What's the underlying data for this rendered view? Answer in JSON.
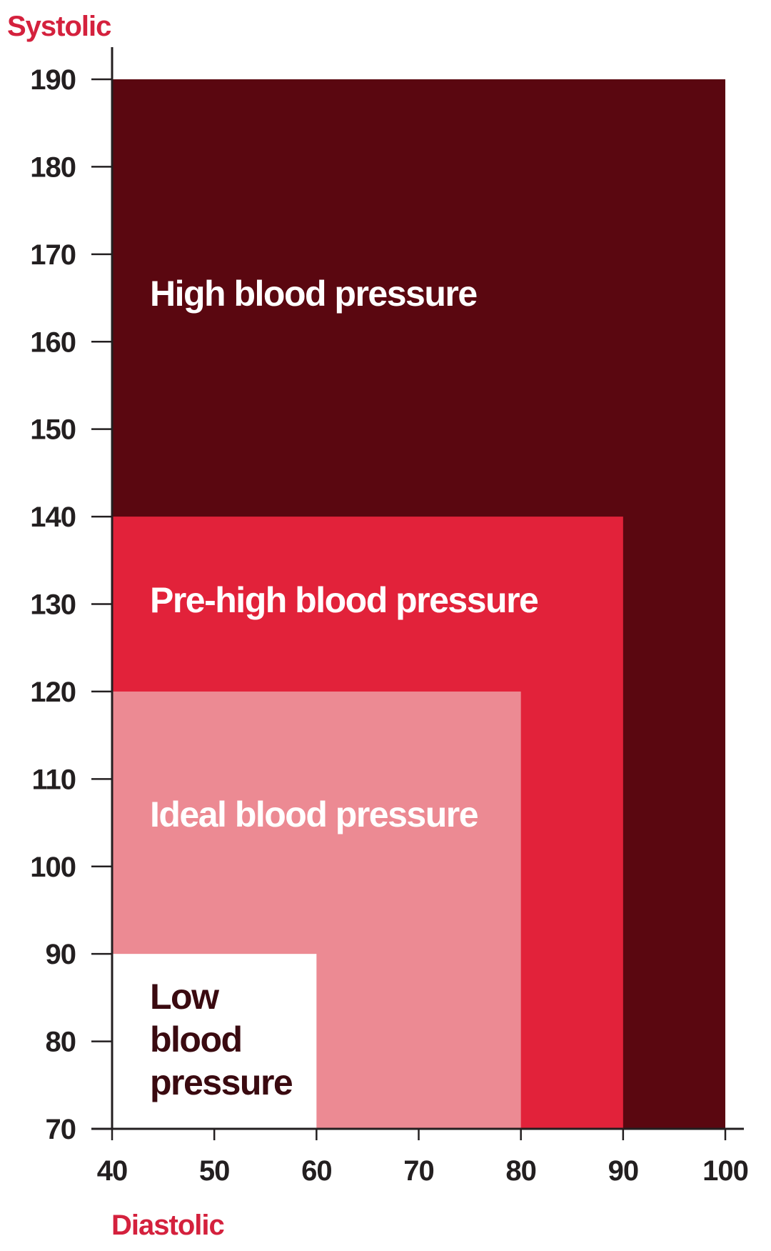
{
  "chart_data": {
    "type": "area",
    "xlabel": "Diastolic",
    "ylabel": "Systolic",
    "xlim": [
      40,
      100
    ],
    "ylim": [
      70,
      190
    ],
    "x_ticks": [
      40,
      50,
      60,
      70,
      80,
      90,
      100
    ],
    "y_ticks": [
      70,
      80,
      90,
      100,
      110,
      120,
      130,
      140,
      150,
      160,
      170,
      180,
      190
    ],
    "grid": false,
    "legend": "none",
    "zones": [
      {
        "name": "High blood pressure",
        "label_lines": [
          "High blood pressure"
        ],
        "diastolic_max": 100,
        "systolic_max": 190,
        "color": "#5a0710",
        "text_color": "#ffffff"
      },
      {
        "name": "Pre-high blood pressure",
        "label_lines": [
          "Pre-high blood pressure"
        ],
        "diastolic_max": 90,
        "systolic_max": 140,
        "color": "#e2223a",
        "text_color": "#ffffff"
      },
      {
        "name": "Ideal blood pressure",
        "label_lines": [
          "Ideal blood pressure"
        ],
        "diastolic_max": 80,
        "systolic_max": 120,
        "color": "#ec8a93",
        "text_color": "#ffffff"
      },
      {
        "name": "Low blood pressure",
        "label_lines": [
          "Low",
          "blood",
          "pressure"
        ],
        "diastolic_max": 60,
        "systolic_max": 90,
        "color": "#ffffff",
        "text_color": "#3a0a10"
      }
    ],
    "axis_title_color": "#d4213d",
    "axis_color": "#231f20"
  }
}
